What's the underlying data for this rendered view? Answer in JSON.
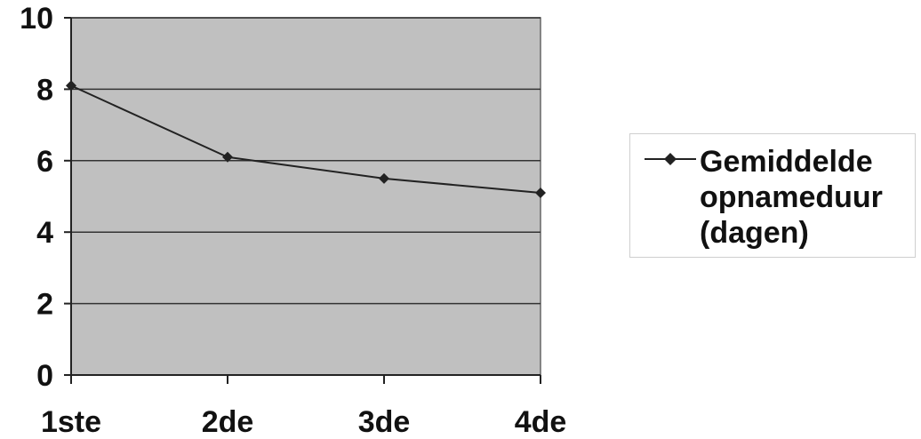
{
  "chart_data": {
    "type": "line",
    "categories": [
      "1ste",
      "2de",
      "3de",
      "4de"
    ],
    "series": [
      {
        "name": "Gemiddelde opnameduur (dagen)",
        "values": [
          8.1,
          6.1,
          5.5,
          5.1
        ]
      }
    ],
    "ylim": [
      0,
      10
    ],
    "yticks": [
      "0",
      "2",
      "4",
      "6",
      "8",
      "10"
    ],
    "grid": true,
    "legend_position": "right",
    "colors": {
      "plot_bg": "#c0c0c0",
      "line": "#222222",
      "grid": "#333333"
    }
  }
}
